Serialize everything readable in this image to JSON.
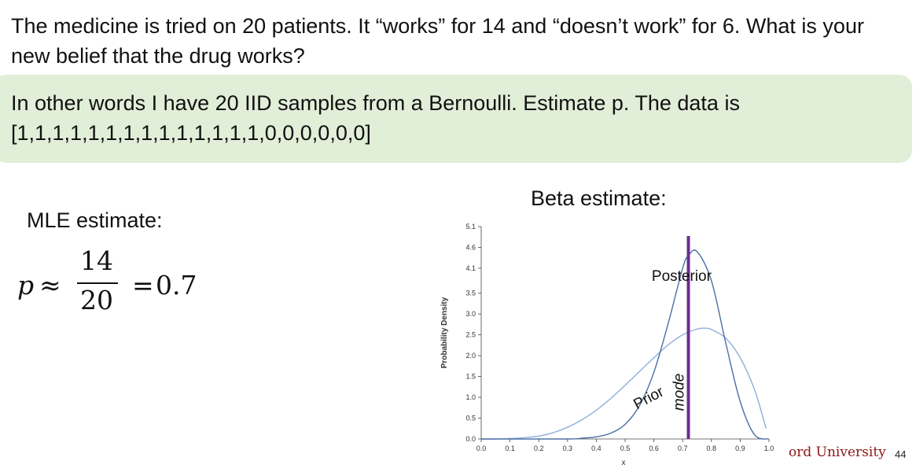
{
  "question": "The medicine is tried on 20 patients. It “works” for 14 and “doesn’t work” for 6. What is your new belief that the drug works?",
  "callout": {
    "line1": "In other words I have 20 IID samples from a Bernoulli. Estimate p. The data is",
    "line2": "[1,1,1,1,1,1,1,1,1,1,1,1,1,1,0,0,0,0,0,0]",
    "background": "#e1eed8"
  },
  "mle": {
    "title": "MLE estimate:",
    "variable": "p",
    "approx": "≈",
    "numerator": "14",
    "denominator": "20",
    "equals": "=",
    "value": "0.7"
  },
  "beta": {
    "title": "Beta estimate:"
  },
  "chart_data": {
    "type": "line",
    "xlabel": "x",
    "ylabel": "Probability Density",
    "xlim": [
      0.0,
      1.0
    ],
    "ylim": [
      0.0,
      5.1
    ],
    "x_ticks": [
      "0.0",
      "0.1",
      "0.2",
      "0.3",
      "0.4",
      "0.5",
      "0.6",
      "0.7",
      "0.8",
      "0.9",
      "1.0"
    ],
    "y_ticks": [
      "0.0",
      "0.5",
      "1.0",
      "1.5",
      "2.0",
      "2.5",
      "3.0",
      "3.5",
      "4.1",
      "4.6",
      "5.1"
    ],
    "series": [
      {
        "name": "Prior",
        "color": "#8fafdc",
        "x": [
          0.0,
          0.05,
          0.1,
          0.15,
          0.2,
          0.25,
          0.3,
          0.35,
          0.4,
          0.45,
          0.5,
          0.55,
          0.6,
          0.65,
          0.7,
          0.75,
          0.78,
          0.8,
          0.85,
          0.9,
          0.95,
          0.99
        ],
        "y": [
          0.0,
          0.0,
          0.01,
          0.03,
          0.07,
          0.15,
          0.28,
          0.46,
          0.69,
          0.97,
          1.29,
          1.62,
          1.95,
          2.26,
          2.5,
          2.64,
          2.66,
          2.63,
          2.42,
          1.95,
          1.18,
          0.25
        ]
      },
      {
        "name": "Posterior",
        "color": "#4a6fa5",
        "x": [
          0.0,
          0.3,
          0.35,
          0.4,
          0.45,
          0.5,
          0.55,
          0.6,
          0.65,
          0.7,
          0.72,
          0.75,
          0.8,
          0.85,
          0.9,
          0.95,
          1.0
        ],
        "y": [
          0.0,
          0.0,
          0.02,
          0.05,
          0.14,
          0.35,
          0.8,
          1.6,
          2.78,
          4.1,
          4.4,
          4.5,
          3.8,
          2.3,
          0.9,
          0.1,
          0.0
        ]
      }
    ],
    "annotations": [
      {
        "text": "Posterior",
        "x": 0.62,
        "y": 3.8
      },
      {
        "text": "Prior",
        "x": 0.42,
        "y": 1.3
      },
      {
        "text": "mode",
        "x": 0.67,
        "y": 1.2
      }
    ],
    "vline": {
      "label": "mode",
      "x": 0.72,
      "color": "#6a2c91"
    }
  },
  "footer": {
    "university": "ord University",
    "page": "44",
    "university_color": "#8c1515"
  }
}
